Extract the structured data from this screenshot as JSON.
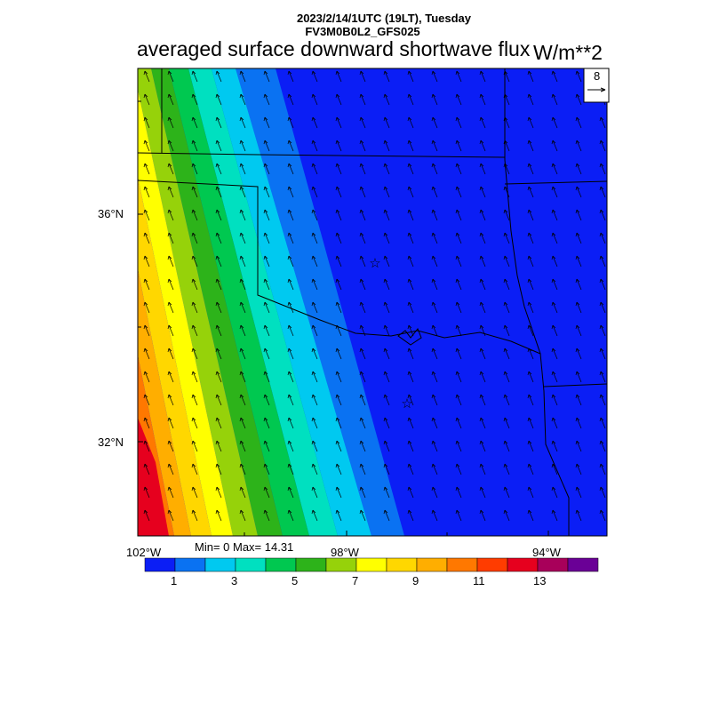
{
  "header": {
    "datetime": "2023/2/14/1UTC (19LT), Tuesday",
    "model": "FV3M0B0L2_GFS025",
    "title": "averaged surface downward shortwave flux",
    "units": "W/m**2"
  },
  "map": {
    "region": "Oklahoma / Texas / Arkansas",
    "lat_labels": [
      "36°N",
      "32°N"
    ],
    "lon_labels": [
      "102°W",
      "98°W",
      "94°W"
    ],
    "cities_marked": 2
  },
  "vector_legend": {
    "reference_value": "8"
  },
  "stats": {
    "text": "Min= 0 Max= 14.31",
    "min": 0,
    "max": 14.31
  },
  "colorbar": {
    "colors": [
      "#0b1ef5",
      "#0a72f2",
      "#00c9f0",
      "#00e0c0",
      "#00c850",
      "#2db31a",
      "#96d20a",
      "#ffff00",
      "#ffd700",
      "#ffae00",
      "#ff7800",
      "#ff3c00",
      "#e6001e",
      "#a8005a",
      "#6a0096"
    ],
    "tick_labels": [
      "1",
      "3",
      "5",
      "7",
      "9",
      "11",
      "13"
    ]
  }
}
